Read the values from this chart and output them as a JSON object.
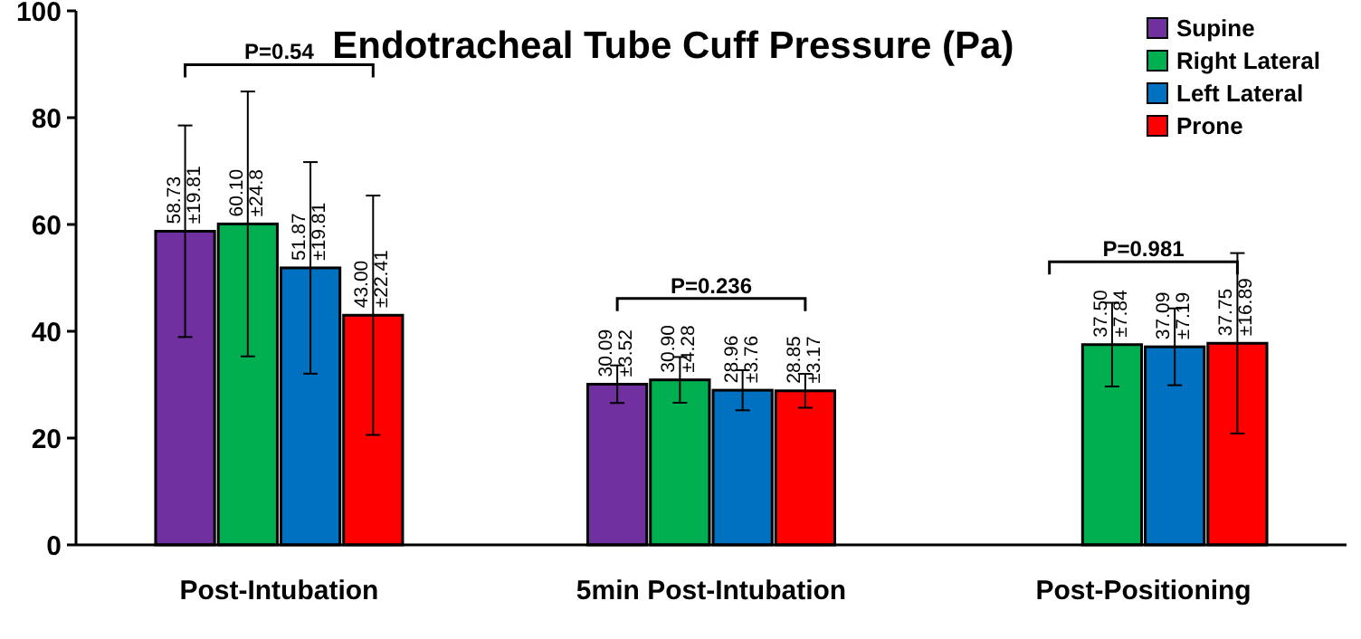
{
  "chart_data": {
    "type": "bar",
    "title": "Endotracheal Tube Cuff Pressure (Pa)",
    "categories": [
      "Post-Intubation",
      "5min Post-Intubation",
      "Post-Positioning"
    ],
    "series": [
      {
        "name": "Supine",
        "color": "#7030a0",
        "values": [
          58.73,
          30.09,
          null
        ],
        "errors": [
          19.81,
          3.52,
          null
        ],
        "value_labels": [
          "58.73 ±19.81",
          "30.09 ±3.52",
          null
        ]
      },
      {
        "name": "Right Lateral",
        "color": "#00b050",
        "values": [
          60.1,
          30.9,
          37.5
        ],
        "errors": [
          24.8,
          4.28,
          7.84
        ],
        "value_labels": [
          "60.10 ±24.8",
          "30.90 ±4.28",
          "37.50 ±7.84"
        ]
      },
      {
        "name": "Left Lateral",
        "color": "#0070c0",
        "values": [
          51.87,
          28.96,
          37.09
        ],
        "errors": [
          19.81,
          3.76,
          7.19
        ],
        "value_labels": [
          "51.87 ±19.81",
          "28.96 ±3.76",
          "37.09 ±7.19"
        ]
      },
      {
        "name": "Prone",
        "color": "#ff0000",
        "values": [
          43.0,
          28.85,
          37.75
        ],
        "errors": [
          22.41,
          3.17,
          16.89
        ],
        "value_labels": [
          "43.00 ±22.41",
          "28.85 ±3.17",
          "37.75 ±16.89"
        ]
      }
    ],
    "ylim": [
      0,
      100
    ],
    "yticks": [
      0,
      20,
      40,
      60,
      80,
      100
    ],
    "grid": false,
    "legend": "top right",
    "annotations": [
      "P=0.54",
      "P=0.236",
      "P=0.981"
    ]
  }
}
